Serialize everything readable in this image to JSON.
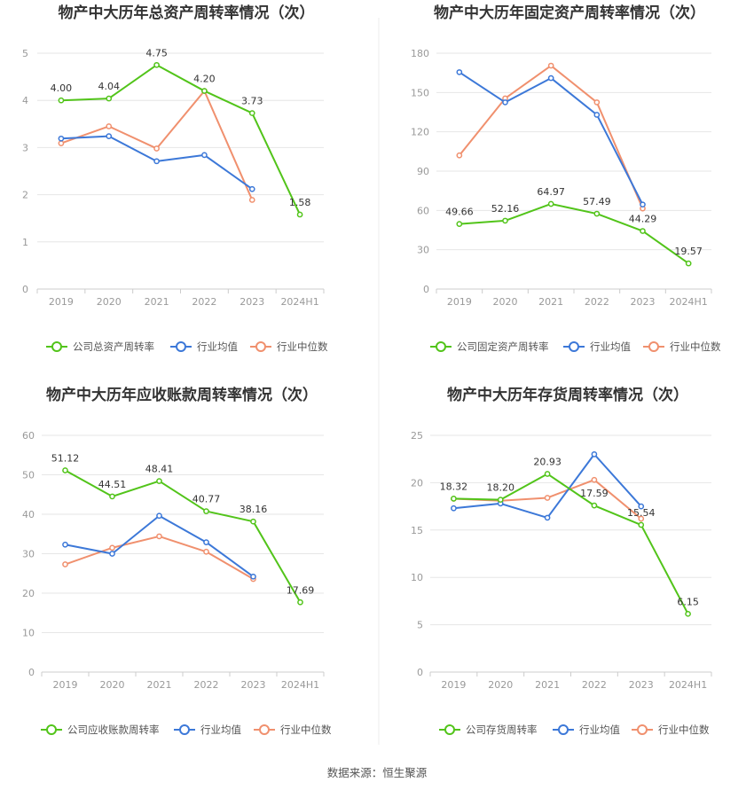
{
  "source": "数据来源：恒生聚源",
  "colors": {
    "company": "#52c41a",
    "avg": "#3c78d8",
    "median": "#f0906e"
  },
  "chart_data": [
    {
      "type": "line",
      "title": "物产中大历年总资产周转率情况（次）",
      "categories": [
        "2019",
        "2020",
        "2021",
        "2022",
        "2023",
        "2024H1"
      ],
      "ylim": [
        0,
        5
      ],
      "yticks": [
        "0",
        "1",
        "2",
        "3",
        "4",
        "5"
      ],
      "series": [
        {
          "name": "公司总资产周转率",
          "values": [
            4.0,
            4.04,
            4.75,
            4.2,
            3.73,
            1.58
          ],
          "labels": [
            "4.00",
            "4.04",
            "4.75",
            "4.20",
            "3.73",
            "1.58"
          ]
        },
        {
          "name": "行业均值",
          "values": [
            3.19,
            3.24,
            2.71,
            2.84,
            2.12,
            null
          ]
        },
        {
          "name": "行业中位数",
          "values": [
            3.09,
            3.45,
            2.98,
            4.2,
            1.89,
            null
          ]
        }
      ]
    },
    {
      "type": "line",
      "title": "物产中大历年固定资产周转率情况（次）",
      "categories": [
        "2019",
        "2020",
        "2021",
        "2022",
        "2023",
        "2024H1"
      ],
      "ylim": [
        0,
        180
      ],
      "yticks": [
        "0",
        "30",
        "60",
        "90",
        "120",
        "150",
        "180"
      ],
      "series": [
        {
          "name": "公司固定资产周转率",
          "values": [
            49.66,
            52.16,
            64.97,
            57.49,
            44.29,
            19.57
          ],
          "labels": [
            "49.66",
            "52.16",
            "64.97",
            "57.49",
            "44.29",
            "19.57"
          ]
        },
        {
          "name": "行业均值",
          "values": [
            165.5,
            142.5,
            161.0,
            133.0,
            64.5,
            null
          ]
        },
        {
          "name": "行业中位数",
          "values": [
            102.0,
            145.5,
            170.5,
            142.5,
            61.5,
            null
          ]
        }
      ]
    },
    {
      "type": "line",
      "title": "物产中大历年应收账款周转率情况（次）",
      "categories": [
        "2019",
        "2020",
        "2021",
        "2022",
        "2023",
        "2024H1"
      ],
      "ylim": [
        0,
        60
      ],
      "yticks": [
        "0",
        "10",
        "20",
        "30",
        "40",
        "50",
        "60"
      ],
      "series": [
        {
          "name": "公司应收账款周转率",
          "values": [
            51.12,
            44.51,
            48.41,
            40.77,
            38.16,
            17.69
          ],
          "labels": [
            "51.12",
            "44.51",
            "48.41",
            "40.77",
            "38.16",
            "17.69"
          ]
        },
        {
          "name": "行业均值",
          "values": [
            32.3,
            30.0,
            39.6,
            32.9,
            24.2,
            null
          ]
        },
        {
          "name": "行业中位数",
          "values": [
            27.3,
            31.5,
            34.4,
            30.5,
            23.6,
            null
          ]
        }
      ]
    },
    {
      "type": "line",
      "title": "物产中大历年存货周转率情况（次）",
      "categories": [
        "2019",
        "2020",
        "2021",
        "2022",
        "2023",
        "2024H1"
      ],
      "ylim": [
        0,
        25
      ],
      "yticks": [
        "0",
        "5",
        "10",
        "15",
        "20",
        "25"
      ],
      "series": [
        {
          "name": "公司存货周转率",
          "values": [
            18.32,
            18.2,
            20.93,
            17.59,
            15.54,
            6.15
          ],
          "labels": [
            "18.32",
            "18.20",
            "20.93",
            "17.59",
            "15.54",
            "6.15"
          ]
        },
        {
          "name": "行业均值",
          "values": [
            17.3,
            17.8,
            16.3,
            23.0,
            17.5,
            null
          ]
        },
        {
          "name": "行业中位数",
          "values": [
            18.3,
            18.1,
            18.4,
            20.3,
            16.2,
            null
          ]
        }
      ]
    }
  ]
}
